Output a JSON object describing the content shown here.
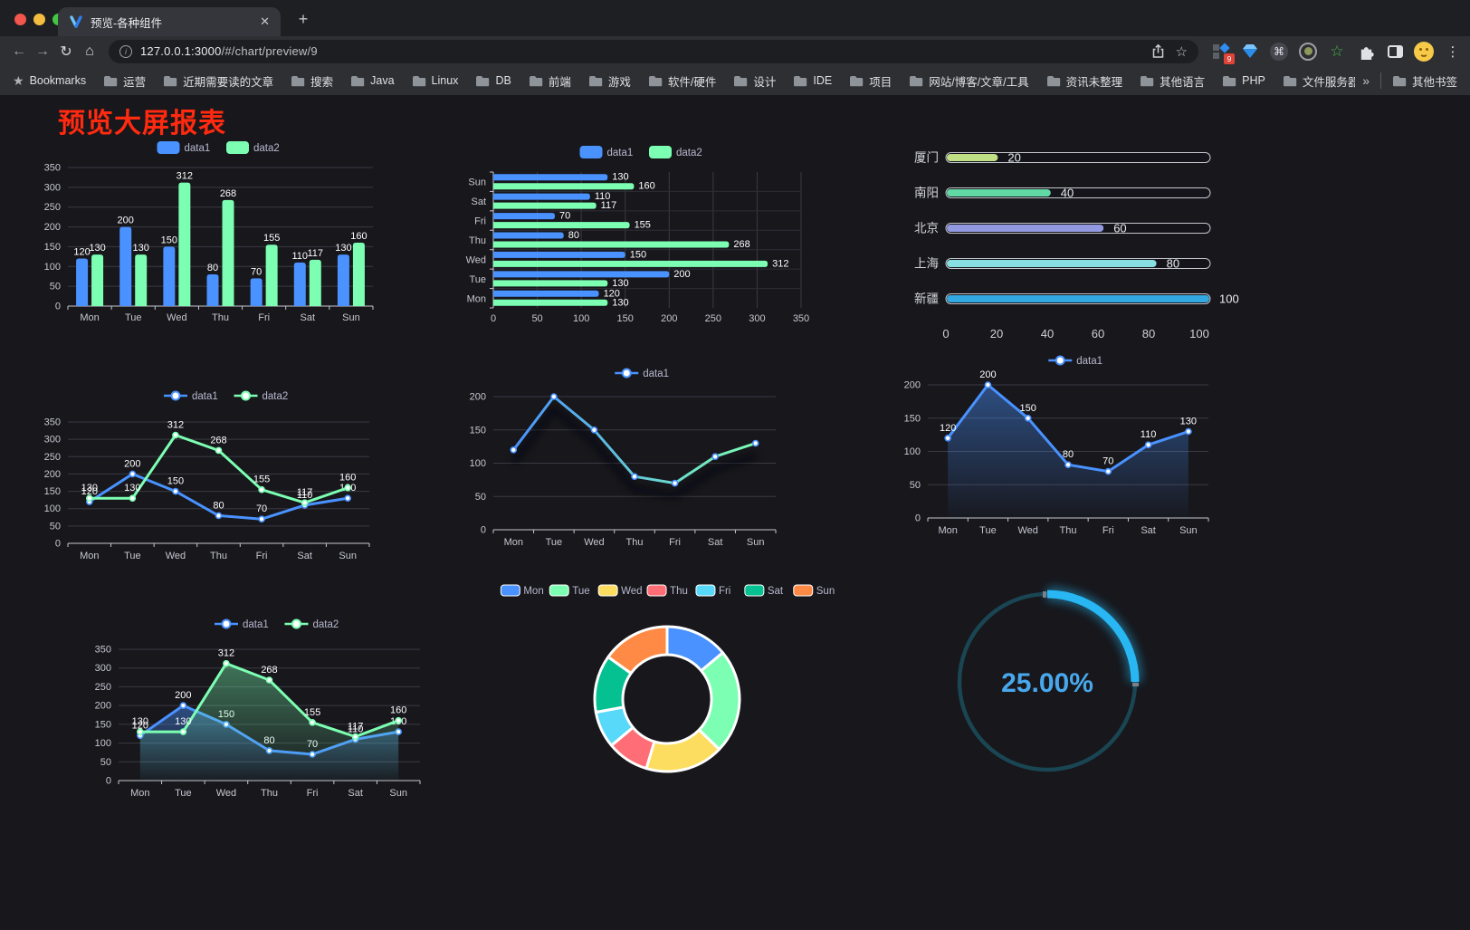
{
  "browser": {
    "tab": {
      "title": "预览-各种组件",
      "close_glyph": "✕",
      "new_tab_glyph": "+"
    },
    "address": {
      "host": "127.0.0.1:3000",
      "path": "/#/chart/preview/9"
    },
    "nav": {
      "back": "←",
      "forward": "→",
      "reload": "↻",
      "home": "⌂",
      "info": "i",
      "star": "☆",
      "menu": "⋮"
    },
    "extensions_badge": "9",
    "bookmarks": {
      "first": "Bookmarks",
      "items": [
        "运营",
        "近期需要读的文章",
        "搜索",
        "Java",
        "Linux",
        "DB",
        "前端",
        "游戏",
        "软件/硬件",
        "设计",
        "IDE",
        "项目",
        "网站/博客/文章/工具",
        "资讯未整理",
        "其他语言",
        "PHP",
        "文件服务器"
      ],
      "overflow": "»",
      "other": "其他书签"
    }
  },
  "page": {
    "title": "预览大屏报表",
    "title_color": "#ff2a0f"
  },
  "chart_data": [
    {
      "id": "bar_grouped",
      "type": "bar",
      "categories": [
        "Mon",
        "Tue",
        "Wed",
        "Thu",
        "Fri",
        "Sat",
        "Sun"
      ],
      "series": [
        {
          "name": "data1",
          "color": "#4992ff",
          "values": [
            120,
            200,
            150,
            80,
            70,
            110,
            130
          ]
        },
        {
          "name": "data2",
          "color": "#7cffb2",
          "values": [
            130,
            130,
            312,
            268,
            155,
            117,
            160
          ]
        }
      ],
      "ylim": [
        0,
        350
      ],
      "yticks": [
        0,
        50,
        100,
        150,
        200,
        250,
        300,
        350
      ],
      "legend_position": "top"
    },
    {
      "id": "bar_horizontal",
      "type": "bar",
      "orientation": "horizontal",
      "categories_top_to_bottom": [
        "Sun",
        "Sat",
        "Fri",
        "Thu",
        "Wed",
        "Tue",
        "Mon"
      ],
      "series": [
        {
          "name": "data1",
          "color": "#4992ff",
          "values_top_to_bottom": [
            130,
            110,
            70,
            80,
            150,
            200,
            120
          ]
        },
        {
          "name": "data2",
          "color": "#7cffb2",
          "values_top_to_bottom": [
            160,
            117,
            155,
            268,
            312,
            130,
            130
          ]
        }
      ],
      "xlim": [
        0,
        350
      ],
      "xticks": [
        0,
        50,
        100,
        150,
        200,
        250,
        300,
        350
      ],
      "legend_position": "top"
    },
    {
      "id": "progress_bars",
      "type": "bar",
      "orientation": "horizontal",
      "categories": [
        "厦门",
        "南阳",
        "北京",
        "上海",
        "新疆"
      ],
      "values": [
        20,
        40,
        60,
        80,
        100
      ],
      "colors": [
        "#bfe084",
        "#61d9a5",
        "#9299e0",
        "#88dfe2",
        "#33a9e2"
      ],
      "xlim": [
        0,
        100
      ],
      "xticks": [
        0,
        20,
        40,
        60,
        80,
        100
      ]
    },
    {
      "id": "line_dual",
      "type": "line",
      "categories": [
        "Mon",
        "Tue",
        "Wed",
        "Thu",
        "Fri",
        "Sat",
        "Sun"
      ],
      "series": [
        {
          "name": "data1",
          "color": "#4992ff",
          "values": [
            120,
            200,
            150,
            80,
            70,
            110,
            130
          ]
        },
        {
          "name": "data2",
          "color": "#7cffb2",
          "values": [
            130,
            130,
            312,
            268,
            155,
            117,
            160
          ]
        }
      ],
      "ylim": [
        0,
        350
      ],
      "yticks": [
        0,
        50,
        100,
        150,
        200,
        250,
        300,
        350
      ],
      "point_labels": true
    },
    {
      "id": "line_gradient",
      "type": "line",
      "categories": [
        "Mon",
        "Tue",
        "Wed",
        "Thu",
        "Fri",
        "Sat",
        "Sun"
      ],
      "series": [
        {
          "name": "data1",
          "gradient": [
            "#4992ff",
            "#7cffb2"
          ],
          "color": "#4992ff",
          "values": [
            120,
            200,
            150,
            80,
            70,
            110,
            130
          ]
        }
      ],
      "ylim": [
        0,
        200
      ],
      "yticks": [
        0,
        50,
        100,
        150,
        200
      ],
      "point_labels": false
    },
    {
      "id": "area_single",
      "type": "area",
      "categories": [
        "Mon",
        "Tue",
        "Wed",
        "Thu",
        "Fri",
        "Sat",
        "Sun"
      ],
      "series": [
        {
          "name": "data1",
          "color": "#4992ff",
          "values": [
            120,
            200,
            150,
            80,
            70,
            110,
            130
          ],
          "area": [
            "rgba(73,146,255,0.45)",
            "rgba(73,146,255,0.02)"
          ]
        }
      ],
      "ylim": [
        0,
        200
      ],
      "yticks": [
        0,
        50,
        100,
        150,
        200
      ],
      "point_labels": true
    },
    {
      "id": "area_dual",
      "type": "area",
      "categories": [
        "Mon",
        "Tue",
        "Wed",
        "Thu",
        "Fri",
        "Sat",
        "Sun"
      ],
      "series": [
        {
          "name": "data1",
          "color": "#4992ff",
          "values": [
            120,
            200,
            150,
            80,
            70,
            110,
            130
          ],
          "area": [
            "rgba(73,146,255,0.45)",
            "rgba(73,146,255,0.02)"
          ]
        },
        {
          "name": "data2",
          "color": "#7cffb2",
          "values": [
            130,
            130,
            312,
            268,
            155,
            117,
            160
          ],
          "area": [
            "rgba(124,255,178,0.40)",
            "rgba(124,255,178,0.02)"
          ]
        }
      ],
      "ylim": [
        0,
        350
      ],
      "yticks": [
        0,
        50,
        100,
        150,
        200,
        250,
        300,
        350
      ],
      "point_labels": true
    },
    {
      "id": "donut",
      "type": "pie",
      "categories": [
        "Mon",
        "Tue",
        "Wed",
        "Thu",
        "Fri",
        "Sat",
        "Sun"
      ],
      "values": [
        120,
        200,
        150,
        80,
        70,
        110,
        130
      ],
      "colors": [
        "#4992ff",
        "#7cffb2",
        "#fddd60",
        "#ff6e76",
        "#58d9f9",
        "#05c091",
        "#ff8a45"
      ],
      "legend_position": "top"
    },
    {
      "id": "gauge",
      "type": "gauge",
      "percent": 25,
      "value_label": "25.00%",
      "color": "#28b7f2",
      "track_color": "#1a4552",
      "text_color": "#49a8ec"
    }
  ]
}
